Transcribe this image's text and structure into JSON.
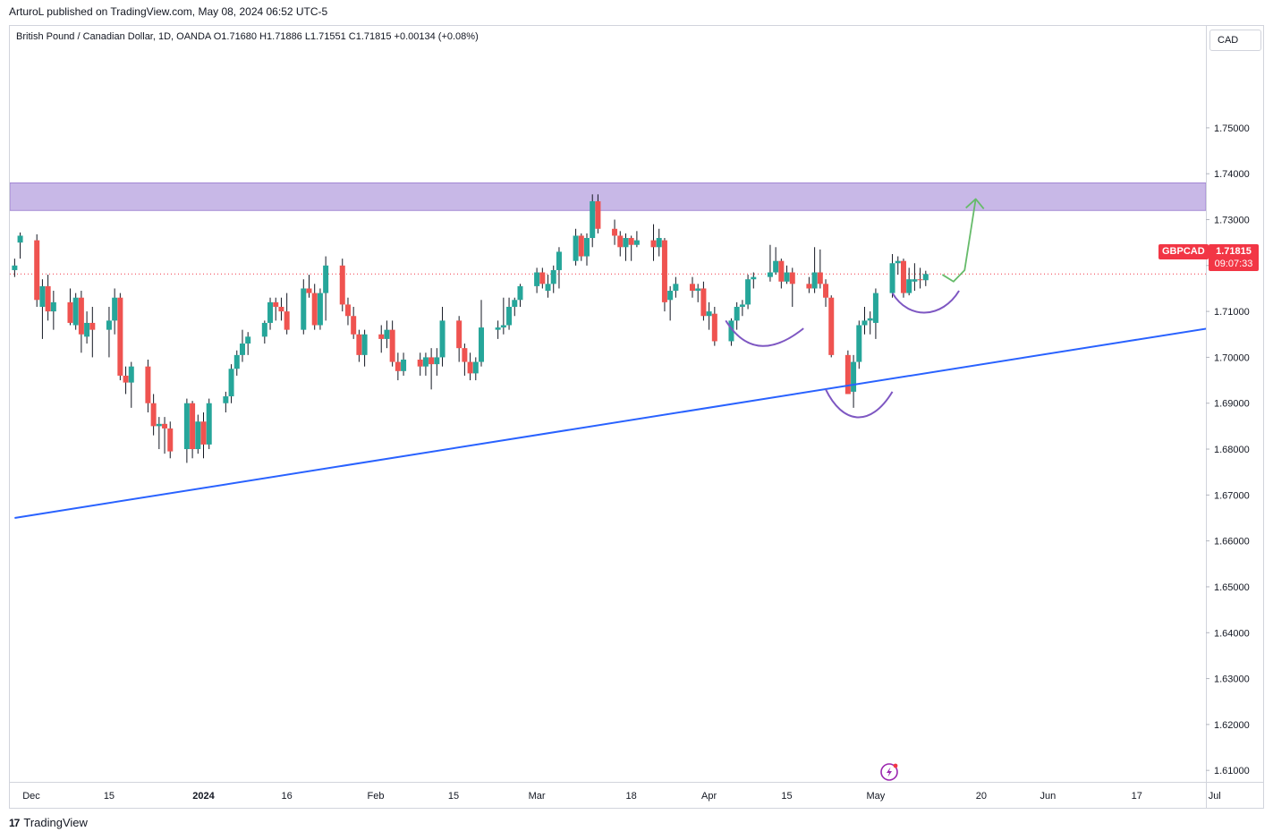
{
  "header": {
    "publisher_line": "ArturoL published on TradingView.com, May 08, 2024 06:52 UTC-5"
  },
  "legend": {
    "text": "British Pound / Canadian Dollar, 1D, OANDA   O1.71680   H1.71886   L1.71551   C1.71815   +0.00134 (+0.08%)"
  },
  "currency_button": {
    "label": "CAD"
  },
  "symbol_tag": {
    "label": "GBPCAD"
  },
  "last_price": {
    "value": "1.71815",
    "countdown": "09:07:33"
  },
  "footer": {
    "brand": "TradingView",
    "logo_text": "17"
  },
  "colors": {
    "up": "#26a69a",
    "down": "#ef5350",
    "zone": "#c5b4e6",
    "trendline": "#2962ff",
    "pattern": "#7e57c2",
    "projection": "#66bb6a",
    "price_line": "#f23645"
  },
  "chart_data": {
    "type": "candlestick",
    "symbol": "GBPCAD",
    "title": "British Pound / Canadian Dollar, 1D, OANDA",
    "ylim": [
      1.6075,
      1.7722
    ],
    "y_ticks": [
      "1.61000",
      "1.62000",
      "1.63000",
      "1.64000",
      "1.65000",
      "1.66000",
      "1.67000",
      "1.68000",
      "1.69000",
      "1.70000",
      "1.71000",
      "1.72000",
      "1.73000",
      "1.74000",
      "1.75000"
    ],
    "x_ticks": [
      {
        "label": "Dec",
        "day": 0
      },
      {
        "label": "15",
        "day": 14
      },
      {
        "label": "2024",
        "day": 31
      },
      {
        "label": "16",
        "day": 46
      },
      {
        "label": "Feb",
        "day": 62
      },
      {
        "label": "15",
        "day": 76
      },
      {
        "label": "Mar",
        "day": 91
      },
      {
        "label": "18",
        "day": 108
      },
      {
        "label": "Apr",
        "day": 122
      },
      {
        "label": "15",
        "day": 136
      },
      {
        "label": "May",
        "day": 152
      },
      {
        "label": "20",
        "day": 171
      },
      {
        "label": "Jun",
        "day": 183
      },
      {
        "label": "17",
        "day": 199
      },
      {
        "label": "Jul",
        "day": 213
      }
    ],
    "candles": [
      {
        "day": -3,
        "o": 1.719,
        "h": 1.7215,
        "l": 1.7175,
        "c": 1.72
      },
      {
        "day": -2,
        "o": 1.725,
        "h": 1.7272,
        "l": 1.7215,
        "c": 1.7265
      },
      {
        "day": 1,
        "o": 1.7255,
        "h": 1.7268,
        "l": 1.711,
        "c": 1.7125
      },
      {
        "day": 2,
        "o": 1.711,
        "h": 1.717,
        "l": 1.704,
        "c": 1.7155
      },
      {
        "day": 3,
        "o": 1.7155,
        "h": 1.718,
        "l": 1.708,
        "c": 1.71
      },
      {
        "day": 4,
        "o": 1.71,
        "h": 1.7145,
        "l": 1.706,
        "c": 1.712
      },
      {
        "day": 7,
        "o": 1.712,
        "h": 1.715,
        "l": 1.707,
        "c": 1.7075
      },
      {
        "day": 8,
        "o": 1.707,
        "h": 1.714,
        "l": 1.706,
        "c": 1.713
      },
      {
        "day": 9,
        "o": 1.713,
        "h": 1.7145,
        "l": 1.701,
        "c": 1.705
      },
      {
        "day": 10,
        "o": 1.7045,
        "h": 1.71,
        "l": 1.703,
        "c": 1.7075
      },
      {
        "day": 11,
        "o": 1.7075,
        "h": 1.711,
        "l": 1.7,
        "c": 1.706
      },
      {
        "day": 14,
        "o": 1.706,
        "h": 1.711,
        "l": 1.7,
        "c": 1.708
      },
      {
        "day": 15,
        "o": 1.708,
        "h": 1.715,
        "l": 1.705,
        "c": 1.713
      },
      {
        "day": 16,
        "o": 1.713,
        "h": 1.714,
        "l": 1.695,
        "c": 1.696
      },
      {
        "day": 17,
        "o": 1.696,
        "h": 1.698,
        "l": 1.692,
        "c": 1.6945
      },
      {
        "day": 18,
        "o": 1.6945,
        "h": 1.699,
        "l": 1.689,
        "c": 1.698
      },
      {
        "day": 21,
        "o": 1.698,
        "h": 1.6995,
        "l": 1.688,
        "c": 1.69
      },
      {
        "day": 22,
        "o": 1.69,
        "h": 1.692,
        "l": 1.683,
        "c": 1.685
      },
      {
        "day": 23,
        "o": 1.685,
        "h": 1.687,
        "l": 1.68,
        "c": 1.6855
      },
      {
        "day": 24,
        "o": 1.6855,
        "h": 1.687,
        "l": 1.679,
        "c": 1.6845
      },
      {
        "day": 25,
        "o": 1.6845,
        "h": 1.686,
        "l": 1.678,
        "c": 1.6795
      },
      {
        "day": 28,
        "o": 1.68,
        "h": 1.691,
        "l": 1.677,
        "c": 1.69
      },
      {
        "day": 29,
        "o": 1.69,
        "h": 1.6905,
        "l": 1.678,
        "c": 1.68
      },
      {
        "day": 30,
        "o": 1.68,
        "h": 1.6875,
        "l": 1.679,
        "c": 1.686
      },
      {
        "day": 31,
        "o": 1.686,
        "h": 1.688,
        "l": 1.678,
        "c": 1.681
      },
      {
        "day": 32,
        "o": 1.681,
        "h": 1.691,
        "l": 1.68,
        "c": 1.69
      },
      {
        "day": 35,
        "o": 1.69,
        "h": 1.6925,
        "l": 1.688,
        "c": 1.6915
      },
      {
        "day": 36,
        "o": 1.6915,
        "h": 1.6985,
        "l": 1.69,
        "c": 1.6975
      },
      {
        "day": 37,
        "o": 1.6975,
        "h": 1.7015,
        "l": 1.696,
        "c": 1.7005
      },
      {
        "day": 38,
        "o": 1.7005,
        "h": 1.706,
        "l": 1.699,
        "c": 1.703
      },
      {
        "day": 39,
        "o": 1.703,
        "h": 1.7055,
        "l": 1.7005,
        "c": 1.7045
      },
      {
        "day": 42,
        "o": 1.7045,
        "h": 1.708,
        "l": 1.703,
        "c": 1.7075
      },
      {
        "day": 43,
        "o": 1.7075,
        "h": 1.713,
        "l": 1.706,
        "c": 1.712
      },
      {
        "day": 44,
        "o": 1.712,
        "h": 1.713,
        "l": 1.708,
        "c": 1.711
      },
      {
        "day": 45,
        "o": 1.711,
        "h": 1.713,
        "l": 1.708,
        "c": 1.71
      },
      {
        "day": 46,
        "o": 1.71,
        "h": 1.714,
        "l": 1.705,
        "c": 1.706
      },
      {
        "day": 49,
        "o": 1.706,
        "h": 1.717,
        "l": 1.705,
        "c": 1.715
      },
      {
        "day": 50,
        "o": 1.715,
        "h": 1.718,
        "l": 1.713,
        "c": 1.714
      },
      {
        "day": 51,
        "o": 1.714,
        "h": 1.716,
        "l": 1.706,
        "c": 1.707
      },
      {
        "day": 52,
        "o": 1.707,
        "h": 1.715,
        "l": 1.706,
        "c": 1.714
      },
      {
        "day": 53,
        "o": 1.714,
        "h": 1.722,
        "l": 1.708,
        "c": 1.72
      },
      {
        "day": 56,
        "o": 1.72,
        "h": 1.7215,
        "l": 1.71,
        "c": 1.7115
      },
      {
        "day": 57,
        "o": 1.7115,
        "h": 1.713,
        "l": 1.707,
        "c": 1.709
      },
      {
        "day": 58,
        "o": 1.709,
        "h": 1.711,
        "l": 1.704,
        "c": 1.705
      },
      {
        "day": 59,
        "o": 1.705,
        "h": 1.706,
        "l": 1.699,
        "c": 1.7005
      },
      {
        "day": 60,
        "o": 1.7005,
        "h": 1.706,
        "l": 1.698,
        "c": 1.705
      },
      {
        "day": 63,
        "o": 1.705,
        "h": 1.707,
        "l": 1.701,
        "c": 1.704
      },
      {
        "day": 64,
        "o": 1.704,
        "h": 1.708,
        "l": 1.702,
        "c": 1.706
      },
      {
        "day": 65,
        "o": 1.706,
        "h": 1.708,
        "l": 1.698,
        "c": 1.699
      },
      {
        "day": 66,
        "o": 1.699,
        "h": 1.701,
        "l": 1.695,
        "c": 1.697
      },
      {
        "day": 67,
        "o": 1.697,
        "h": 1.701,
        "l": 1.696,
        "c": 1.6995
      },
      {
        "day": 70,
        "o": 1.6995,
        "h": 1.701,
        "l": 1.696,
        "c": 1.698
      },
      {
        "day": 71,
        "o": 1.698,
        "h": 1.701,
        "l": 1.696,
        "c": 1.7
      },
      {
        "day": 72,
        "o": 1.7,
        "h": 1.702,
        "l": 1.693,
        "c": 1.6985
      },
      {
        "day": 73,
        "o": 1.6985,
        "h": 1.702,
        "l": 1.696,
        "c": 1.7
      },
      {
        "day": 74,
        "o": 1.7,
        "h": 1.711,
        "l": 1.698,
        "c": 1.708
      },
      {
        "day": 77,
        "o": 1.708,
        "h": 1.709,
        "l": 1.699,
        "c": 1.702
      },
      {
        "day": 78,
        "o": 1.702,
        "h": 1.703,
        "l": 1.696,
        "c": 1.699
      },
      {
        "day": 79,
        "o": 1.699,
        "h": 1.701,
        "l": 1.695,
        "c": 1.6965
      },
      {
        "day": 80,
        "o": 1.6965,
        "h": 1.7,
        "l": 1.695,
        "c": 1.699
      },
      {
        "day": 81,
        "o": 1.699,
        "h": 1.7125,
        "l": 1.698,
        "c": 1.7065
      },
      {
        "day": 84,
        "o": 1.706,
        "h": 1.708,
        "l": 1.704,
        "c": 1.7065
      },
      {
        "day": 85,
        "o": 1.7065,
        "h": 1.713,
        "l": 1.705,
        "c": 1.707
      },
      {
        "day": 86,
        "o": 1.707,
        "h": 1.713,
        "l": 1.706,
        "c": 1.711
      },
      {
        "day": 87,
        "o": 1.711,
        "h": 1.713,
        "l": 1.709,
        "c": 1.7125
      },
      {
        "day": 88,
        "o": 1.7125,
        "h": 1.716,
        "l": 1.711,
        "c": 1.7155
      },
      {
        "day": 91,
        "o": 1.7155,
        "h": 1.7195,
        "l": 1.714,
        "c": 1.7185
      },
      {
        "day": 92,
        "o": 1.7185,
        "h": 1.7195,
        "l": 1.715,
        "c": 1.716
      },
      {
        "day": 93,
        "o": 1.7145,
        "h": 1.718,
        "l": 1.713,
        "c": 1.716
      },
      {
        "day": 94,
        "o": 1.716,
        "h": 1.72,
        "l": 1.714,
        "c": 1.719
      },
      {
        "day": 95,
        "o": 1.719,
        "h": 1.724,
        "l": 1.715,
        "c": 1.723
      },
      {
        "day": 98,
        "o": 1.721,
        "h": 1.728,
        "l": 1.72,
        "c": 1.7265
      },
      {
        "day": 99,
        "o": 1.7265,
        "h": 1.727,
        "l": 1.721,
        "c": 1.722
      },
      {
        "day": 100,
        "o": 1.722,
        "h": 1.727,
        "l": 1.72,
        "c": 1.726
      },
      {
        "day": 101,
        "o": 1.726,
        "h": 1.7355,
        "l": 1.724,
        "c": 1.734
      },
      {
        "day": 102,
        "o": 1.734,
        "h": 1.7355,
        "l": 1.727,
        "c": 1.728
      },
      {
        "day": 105,
        "o": 1.728,
        "h": 1.73,
        "l": 1.7245,
        "c": 1.7265
      },
      {
        "day": 106,
        "o": 1.7265,
        "h": 1.7275,
        "l": 1.722,
        "c": 1.724
      },
      {
        "day": 107,
        "o": 1.724,
        "h": 1.727,
        "l": 1.721,
        "c": 1.726
      },
      {
        "day": 108,
        "o": 1.726,
        "h": 1.7265,
        "l": 1.721,
        "c": 1.7245
      },
      {
        "day": 109,
        "o": 1.7245,
        "h": 1.7275,
        "l": 1.724,
        "c": 1.7255
      },
      {
        "day": 112,
        "o": 1.7255,
        "h": 1.729,
        "l": 1.721,
        "c": 1.724
      },
      {
        "day": 113,
        "o": 1.724,
        "h": 1.728,
        "l": 1.722,
        "c": 1.726
      },
      {
        "day": 114,
        "o": 1.7255,
        "h": 1.726,
        "l": 1.71,
        "c": 1.712
      },
      {
        "day": 115,
        "o": 1.7125,
        "h": 1.7155,
        "l": 1.708,
        "c": 1.7145
      },
      {
        "day": 116,
        "o": 1.7145,
        "h": 1.7175,
        "l": 1.713,
        "c": 1.716
      },
      {
        "day": 119,
        "o": 1.716,
        "h": 1.7175,
        "l": 1.713,
        "c": 1.7145
      },
      {
        "day": 120,
        "o": 1.7145,
        "h": 1.716,
        "l": 1.712,
        "c": 1.715
      },
      {
        "day": 121,
        "o": 1.715,
        "h": 1.7165,
        "l": 1.708,
        "c": 1.709
      },
      {
        "day": 122,
        "o": 1.709,
        "h": 1.712,
        "l": 1.706,
        "c": 1.71
      },
      {
        "day": 123,
        "o": 1.7095,
        "h": 1.711,
        "l": 1.7025,
        "c": 1.7035
      },
      {
        "day": 126,
        "o": 1.7035,
        "h": 1.7085,
        "l": 1.7025,
        "c": 1.708
      },
      {
        "day": 127,
        "o": 1.708,
        "h": 1.712,
        "l": 1.706,
        "c": 1.711
      },
      {
        "day": 128,
        "o": 1.711,
        "h": 1.7125,
        "l": 1.709,
        "c": 1.7115
      },
      {
        "day": 129,
        "o": 1.7115,
        "h": 1.718,
        "l": 1.7105,
        "c": 1.717
      },
      {
        "day": 130,
        "o": 1.717,
        "h": 1.7185,
        "l": 1.715,
        "c": 1.7175
      },
      {
        "day": 133,
        "o": 1.7175,
        "h": 1.7245,
        "l": 1.7165,
        "c": 1.7185
      },
      {
        "day": 134,
        "o": 1.7185,
        "h": 1.724,
        "l": 1.718,
        "c": 1.721
      },
      {
        "day": 135,
        "o": 1.721,
        "h": 1.7215,
        "l": 1.715,
        "c": 1.7165
      },
      {
        "day": 136,
        "o": 1.7165,
        "h": 1.72,
        "l": 1.716,
        "c": 1.7185
      },
      {
        "day": 137,
        "o": 1.7185,
        "h": 1.7195,
        "l": 1.711,
        "c": 1.716
      },
      {
        "day": 140,
        "o": 1.716,
        "h": 1.7175,
        "l": 1.714,
        "c": 1.715
      },
      {
        "day": 141,
        "o": 1.715,
        "h": 1.724,
        "l": 1.714,
        "c": 1.7185
      },
      {
        "day": 142,
        "o": 1.7185,
        "h": 1.7235,
        "l": 1.715,
        "c": 1.716
      },
      {
        "day": 143,
        "o": 1.716,
        "h": 1.717,
        "l": 1.711,
        "c": 1.713
      },
      {
        "day": 144,
        "o": 1.713,
        "h": 1.7135,
        "l": 1.7,
        "c": 1.7005
      },
      {
        "day": 147,
        "o": 1.7005,
        "h": 1.7015,
        "l": 1.692,
        "c": 1.692
      },
      {
        "day": 148,
        "o": 1.6925,
        "h": 1.7005,
        "l": 1.689,
        "c": 1.699
      },
      {
        "day": 149,
        "o": 1.699,
        "h": 1.708,
        "l": 1.6975,
        "c": 1.707
      },
      {
        "day": 150,
        "o": 1.707,
        "h": 1.711,
        "l": 1.705,
        "c": 1.708
      },
      {
        "day": 151,
        "o": 1.708,
        "h": 1.71,
        "l": 1.705,
        "c": 1.7085
      },
      {
        "day": 152,
        "o": 1.7075,
        "h": 1.715,
        "l": 1.704,
        "c": 1.714
      },
      {
        "day": 155,
        "o": 1.714,
        "h": 1.7225,
        "l": 1.713,
        "c": 1.7205
      },
      {
        "day": 156,
        "o": 1.7205,
        "h": 1.722,
        "l": 1.718,
        "c": 1.721
      },
      {
        "day": 157,
        "o": 1.721,
        "h": 1.7215,
        "l": 1.713,
        "c": 1.714
      },
      {
        "day": 158,
        "o": 1.714,
        "h": 1.7195,
        "l": 1.7135,
        "c": 1.717
      },
      {
        "day": 159,
        "o": 1.7165,
        "h": 1.7205,
        "l": 1.7145,
        "c": 1.717
      },
      {
        "day": 160,
        "o": 1.717,
        "h": 1.7195,
        "l": 1.715,
        "c": 1.7168
      },
      {
        "day": 161,
        "o": 1.7168,
        "h": 1.71886,
        "l": 1.71551,
        "c": 1.71815
      }
    ],
    "resistance_zone": {
      "from": 1.732,
      "to": 1.738,
      "label": ""
    },
    "trendline": {
      "start": {
        "day": -3,
        "price": 1.665
      },
      "end": {
        "day": 217,
        "price": 1.7073
      }
    },
    "pattern_curves": [
      {
        "role": "left-shoulder",
        "points": [
          [
            125,
            1.708
          ],
          [
            129,
            1.7003
          ],
          [
            134,
            1.7015
          ],
          [
            139,
            1.7063
          ]
        ]
      },
      {
        "role": "head",
        "points": [
          [
            143,
            1.693
          ],
          [
            146,
            1.6855
          ],
          [
            151,
            1.6845
          ],
          [
            155,
            1.6925
          ]
        ]
      },
      {
        "role": "right-shoulder",
        "points": [
          [
            155,
            1.714
          ],
          [
            158,
            1.708
          ],
          [
            164,
            1.7085
          ],
          [
            167,
            1.7145
          ]
        ]
      }
    ],
    "projection_arrow": {
      "points": [
        [
          164,
          1.718
        ],
        [
          166,
          1.7165
        ],
        [
          168,
          1.719
        ],
        [
          170,
          1.7345
        ]
      ]
    },
    "last_price_line": 1.71815
  }
}
